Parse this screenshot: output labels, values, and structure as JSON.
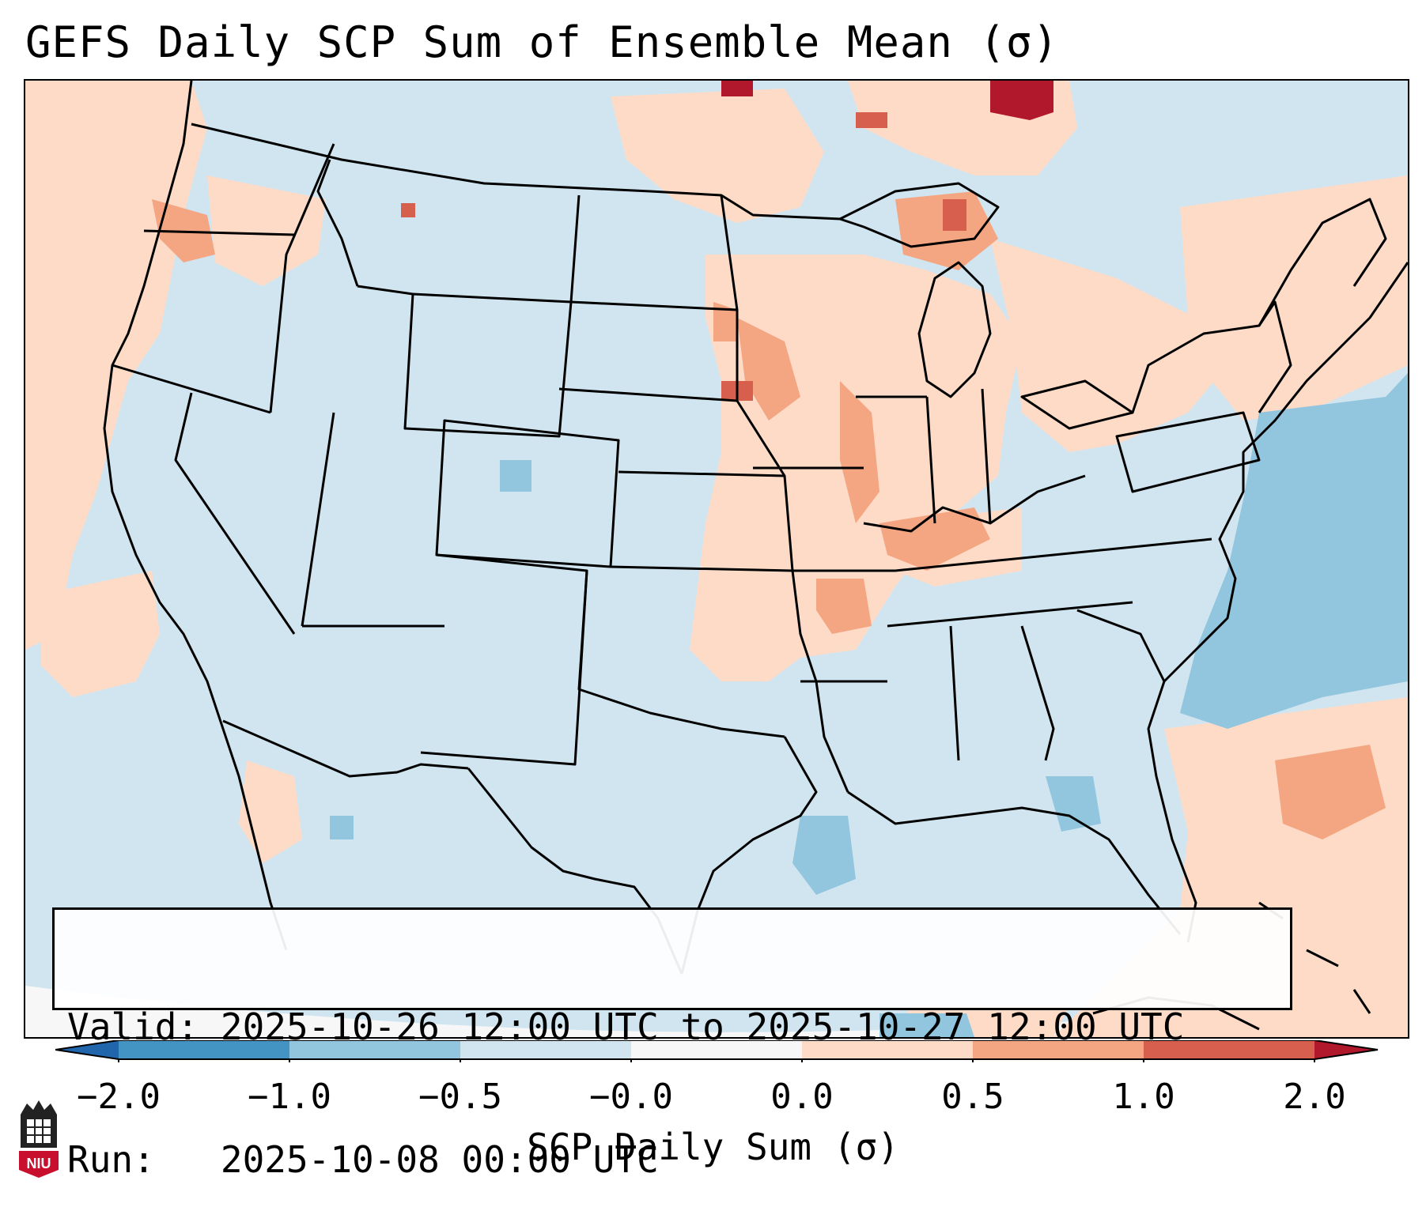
{
  "title": "GEFS Daily SCP Sum of Ensemble Mean (σ)",
  "info": {
    "valid_label": "Valid:",
    "valid_value": "2025-10-26 12:00 UTC to 2025-10-27 12:00 UTC",
    "run_label": "Run:",
    "run_value": "2025-10-08 00:00 UTC"
  },
  "colorbar": {
    "label": "SCP Daily Sum (σ)",
    "ticks": [
      "−2.0",
      "−1.0",
      "−0.5",
      "−0.0",
      "0.0",
      "0.5",
      "1.0",
      "2.0"
    ],
    "bin_colors": [
      "#4393c3",
      "#92c5de",
      "#d1e5f0",
      "#f7f7f7",
      "#fddbc7",
      "#f4a582",
      "#d6604d"
    ],
    "extend_low_color": "#2166ac",
    "extend_high_color": "#b2182b"
  },
  "map": {
    "background_color": "#d1e5f0",
    "outside_color": "#f7f7f7",
    "regions": [
      {
        "name": "west-coast-positive",
        "level": "0.0 to 0.5"
      },
      {
        "name": "midwest-positive",
        "level": "0.0 to 0.5"
      },
      {
        "name": "great-lakes-positive",
        "level": "0.5 to 1.0"
      },
      {
        "name": "upper-michigan-high",
        "level": "1.0 to 2.0"
      },
      {
        "name": "atlantic-negative",
        "level": "−1.0 to −0.5"
      },
      {
        "name": "gulf-negative",
        "level": "−1.0 to −0.5"
      },
      {
        "name": "caribbean-positive",
        "level": "0.0 to 0.5"
      }
    ]
  },
  "logo": {
    "text": "NIU",
    "color": "#c8102e"
  }
}
